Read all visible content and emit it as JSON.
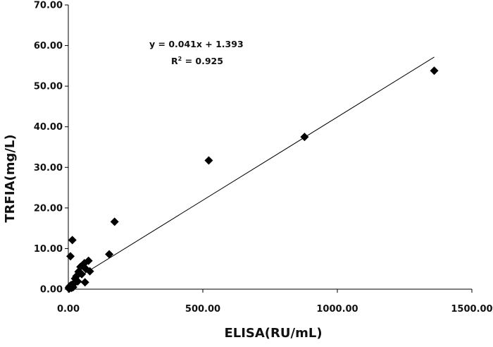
{
  "chart_data": {
    "type": "scatter",
    "xlabel": "ELISA(RU/mL)",
    "ylabel": "TRFIA(mg/L)",
    "xlim": [
      0,
      1500
    ],
    "ylim": [
      0,
      70
    ],
    "x_ticks": [
      "0.00",
      "500.00",
      "1000.00",
      "1500.00"
    ],
    "y_ticks": [
      "0.00",
      "10.00",
      "20.00",
      "30.00",
      "40.00",
      "50.00",
      "60.00",
      "70.00"
    ],
    "grid": false,
    "trendline": {
      "slope": 0.041,
      "intercept": 1.393,
      "equation": "y = 0.041x + 1.393",
      "r2_prefix": "R",
      "r2_exp": "2",
      "r2_suffix": " = 0.925"
    },
    "points": [
      [
        1360,
        53.8
      ],
      [
        878,
        37.5
      ],
      [
        522,
        31.7
      ],
      [
        172,
        16.6
      ],
      [
        152,
        8.6
      ],
      [
        15,
        12.1
      ],
      [
        8,
        8.1
      ],
      [
        75,
        7.0
      ],
      [
        60,
        6.4
      ],
      [
        45,
        5.5
      ],
      [
        65,
        5.0
      ],
      [
        38,
        4.3
      ],
      [
        80,
        4.4
      ],
      [
        50,
        3.7
      ],
      [
        30,
        3.2
      ],
      [
        25,
        2.6
      ],
      [
        35,
        1.9
      ],
      [
        62,
        1.7
      ],
      [
        20,
        1.3
      ],
      [
        10,
        1.0
      ],
      [
        5,
        0.7
      ],
      [
        2,
        0.4
      ],
      [
        12,
        0.3
      ],
      [
        18,
        0.5
      ],
      [
        3,
        0.1
      ]
    ]
  }
}
